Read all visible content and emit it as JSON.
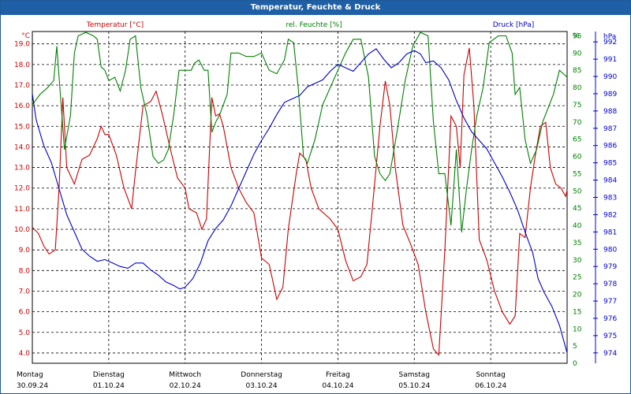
{
  "window": {
    "title": "Temperatur, Feuchte & Druck"
  },
  "chart_data": {
    "type": "line",
    "title": "Temperatur, Feuchte & Druck",
    "grid": true,
    "x_range": [
      0,
      7
    ],
    "days": [
      {
        "weekday": "Montag",
        "date": "30.09.24"
      },
      {
        "weekday": "Dienstag",
        "date": "01.10.24"
      },
      {
        "weekday": "Mittwoch",
        "date": "02.10.24"
      },
      {
        "weekday": "Donnerstag",
        "date": "03.10.24"
      },
      {
        "weekday": "Freitag",
        "date": "04.10.24"
      },
      {
        "weekday": "Samstag",
        "date": "05.10.24"
      },
      {
        "weekday": "Sonntag",
        "date": "06.10.24"
      }
    ],
    "axes": {
      "temperature": {
        "label": "Temperatur [°C]",
        "unit": "°C",
        "color": "#cc0000",
        "min": 3.5,
        "max": 19.6,
        "ticks": [
          "4.0",
          "5.0",
          "6.0",
          "7.0",
          "8.0",
          "9.0",
          "10.0",
          "11.0",
          "12.0",
          "13.0",
          "14.0",
          "15.0",
          "16.0",
          "17.0",
          "18.0",
          "19.0"
        ]
      },
      "humidity": {
        "label": "rel. Feuchte [%]",
        "unit": "%",
        "color": "#008000",
        "min": 0,
        "max": 96.25,
        "ticks": [
          "0",
          "5",
          "10",
          "15",
          "20",
          "25",
          "30",
          "35",
          "40",
          "45",
          "50",
          "55",
          "60",
          "65",
          "70",
          "75",
          "80",
          "85",
          "90",
          "95"
        ]
      },
      "pressure": {
        "label": "Druck [hPa]",
        "unit": "hPa",
        "color": "#0000cc",
        "min": 973.4,
        "max": 992.6,
        "ticks": [
          "974",
          "975",
          "976",
          "977",
          "978",
          "979",
          "980",
          "981",
          "982",
          "983",
          "984",
          "985",
          "986",
          "987",
          "988",
          "989",
          "990",
          "991",
          "992"
        ]
      }
    },
    "series": [
      {
        "name": "Temperatur",
        "axis": "temperature",
        "color": "#cc0000",
        "points": [
          [
            0,
            10.1
          ],
          [
            0.08,
            9.8
          ],
          [
            0.15,
            9.2
          ],
          [
            0.22,
            8.8
          ],
          [
            0.3,
            9.0
          ],
          [
            0.35,
            12.0
          ],
          [
            0.4,
            16.4
          ],
          [
            0.45,
            13.0
          ],
          [
            0.55,
            12.2
          ],
          [
            0.65,
            13.4
          ],
          [
            0.75,
            13.6
          ],
          [
            0.85,
            14.4
          ],
          [
            0.9,
            15.0
          ],
          [
            0.95,
            14.6
          ],
          [
            1.0,
            14.6
          ],
          [
            1.1,
            13.6
          ],
          [
            1.2,
            12.0
          ],
          [
            1.3,
            11.0
          ],
          [
            1.35,
            12.8
          ],
          [
            1.45,
            16.0
          ],
          [
            1.55,
            16.2
          ],
          [
            1.62,
            16.7
          ],
          [
            1.7,
            15.6
          ],
          [
            1.8,
            14.0
          ],
          [
            1.9,
            12.5
          ],
          [
            2.0,
            12.0
          ],
          [
            2.05,
            11.0
          ],
          [
            2.15,
            10.8
          ],
          [
            2.22,
            10.0
          ],
          [
            2.28,
            10.5
          ],
          [
            2.35,
            16.4
          ],
          [
            2.4,
            15.5
          ],
          [
            2.45,
            15.6
          ],
          [
            2.5,
            15.0
          ],
          [
            2.6,
            13.0
          ],
          [
            2.7,
            12.0
          ],
          [
            2.8,
            11.3
          ],
          [
            2.9,
            10.8
          ],
          [
            3.0,
            8.6
          ],
          [
            3.1,
            8.3
          ],
          [
            3.2,
            6.6
          ],
          [
            3.28,
            7.2
          ],
          [
            3.35,
            10.0
          ],
          [
            3.45,
            12.6
          ],
          [
            3.5,
            13.7
          ],
          [
            3.58,
            13.4
          ],
          [
            3.65,
            12.0
          ],
          [
            3.75,
            11.0
          ],
          [
            3.9,
            10.5
          ],
          [
            4.0,
            10.0
          ],
          [
            4.1,
            8.5
          ],
          [
            4.2,
            7.5
          ],
          [
            4.3,
            7.7
          ],
          [
            4.38,
            8.3
          ],
          [
            4.45,
            11.0
          ],
          [
            4.55,
            15.0
          ],
          [
            4.62,
            17.2
          ],
          [
            4.68,
            16.0
          ],
          [
            4.75,
            13.0
          ],
          [
            4.85,
            10.2
          ],
          [
            4.95,
            9.3
          ],
          [
            5.05,
            8.3
          ],
          [
            5.15,
            6.0
          ],
          [
            5.25,
            4.2
          ],
          [
            5.32,
            3.9
          ],
          [
            5.4,
            9.0
          ],
          [
            5.48,
            15.5
          ],
          [
            5.55,
            15.0
          ],
          [
            5.6,
            13.0
          ],
          [
            5.65,
            17.5
          ],
          [
            5.72,
            18.8
          ],
          [
            5.78,
            16.0
          ],
          [
            5.85,
            9.5
          ],
          [
            5.95,
            8.5
          ],
          [
            6.05,
            7.0
          ],
          [
            6.15,
            6.0
          ],
          [
            6.25,
            5.4
          ],
          [
            6.32,
            5.8
          ],
          [
            6.38,
            9.8
          ],
          [
            6.45,
            9.6
          ],
          [
            6.52,
            12.0
          ],
          [
            6.58,
            13.5
          ],
          [
            6.65,
            15.0
          ],
          [
            6.72,
            15.2
          ],
          [
            6.78,
            13.0
          ],
          [
            6.85,
            12.2
          ],
          [
            6.92,
            12.0
          ],
          [
            6.98,
            11.6
          ],
          [
            7.0,
            11.9
          ]
        ]
      },
      {
        "name": "rel. Feuchte",
        "axis": "humidity",
        "color": "#008000",
        "points": [
          [
            0,
            75
          ],
          [
            0.1,
            78
          ],
          [
            0.2,
            80
          ],
          [
            0.28,
            82
          ],
          [
            0.32,
            92
          ],
          [
            0.36,
            80
          ],
          [
            0.42,
            62
          ],
          [
            0.5,
            72
          ],
          [
            0.55,
            90
          ],
          [
            0.6,
            95
          ],
          [
            0.7,
            96
          ],
          [
            0.8,
            95
          ],
          [
            0.85,
            94
          ],
          [
            0.9,
            86
          ],
          [
            0.95,
            85
          ],
          [
            1.0,
            82
          ],
          [
            1.08,
            83
          ],
          [
            1.15,
            79
          ],
          [
            1.22,
            85
          ],
          [
            1.28,
            94
          ],
          [
            1.35,
            95
          ],
          [
            1.42,
            80
          ],
          [
            1.5,
            72
          ],
          [
            1.58,
            60
          ],
          [
            1.65,
            58
          ],
          [
            1.72,
            59
          ],
          [
            1.78,
            62
          ],
          [
            1.85,
            72
          ],
          [
            1.92,
            85
          ],
          [
            2.0,
            85
          ],
          [
            2.08,
            85
          ],
          [
            2.12,
            87
          ],
          [
            2.18,
            88
          ],
          [
            2.25,
            85
          ],
          [
            2.3,
            85
          ],
          [
            2.35,
            67
          ],
          [
            2.4,
            70
          ],
          [
            2.45,
            72
          ],
          [
            2.55,
            78
          ],
          [
            2.6,
            90
          ],
          [
            2.7,
            90
          ],
          [
            2.8,
            89
          ],
          [
            2.9,
            89
          ],
          [
            3.0,
            90
          ],
          [
            3.1,
            85
          ],
          [
            3.2,
            84
          ],
          [
            3.3,
            88
          ],
          [
            3.35,
            94
          ],
          [
            3.42,
            93
          ],
          [
            3.48,
            80
          ],
          [
            3.55,
            60
          ],
          [
            3.6,
            58
          ],
          [
            3.7,
            65
          ],
          [
            3.8,
            75
          ],
          [
            3.9,
            80
          ],
          [
            4.0,
            85
          ],
          [
            4.1,
            90
          ],
          [
            4.2,
            94
          ],
          [
            4.3,
            94
          ],
          [
            4.4,
            83
          ],
          [
            4.48,
            60
          ],
          [
            4.55,
            55
          ],
          [
            4.62,
            53
          ],
          [
            4.68,
            55
          ],
          [
            4.78,
            68
          ],
          [
            4.88,
            82
          ],
          [
            4.98,
            92
          ],
          [
            5.08,
            96
          ],
          [
            5.18,
            95
          ],
          [
            5.25,
            70
          ],
          [
            5.32,
            55
          ],
          [
            5.4,
            55
          ],
          [
            5.48,
            40
          ],
          [
            5.55,
            62
          ],
          [
            5.62,
            38
          ],
          [
            5.68,
            50
          ],
          [
            5.75,
            62
          ],
          [
            5.82,
            72
          ],
          [
            5.9,
            80
          ],
          [
            5.98,
            93
          ],
          [
            6.1,
            95
          ],
          [
            6.2,
            95
          ],
          [
            6.28,
            90
          ],
          [
            6.32,
            78
          ],
          [
            6.38,
            80
          ],
          [
            6.45,
            65
          ],
          [
            6.52,
            58
          ],
          [
            6.6,
            62
          ],
          [
            6.68,
            70
          ],
          [
            6.75,
            74
          ],
          [
            6.82,
            78
          ],
          [
            6.9,
            85
          ],
          [
            6.95,
            84
          ],
          [
            7.0,
            83
          ]
        ]
      },
      {
        "name": "Druck",
        "axis": "pressure",
        "color": "#0000cc",
        "points": [
          [
            0,
            989.0
          ],
          [
            0.05,
            987.5
          ],
          [
            0.15,
            986.0
          ],
          [
            0.25,
            985.0
          ],
          [
            0.35,
            983.5
          ],
          [
            0.45,
            982.0
          ],
          [
            0.55,
            981.0
          ],
          [
            0.65,
            980.0
          ],
          [
            0.75,
            979.6
          ],
          [
            0.85,
            979.3
          ],
          [
            0.95,
            979.4
          ],
          [
            1.05,
            979.2
          ],
          [
            1.15,
            979.0
          ],
          [
            1.25,
            978.9
          ],
          [
            1.35,
            979.2
          ],
          [
            1.45,
            979.2
          ],
          [
            1.55,
            978.8
          ],
          [
            1.65,
            978.5
          ],
          [
            1.75,
            978.1
          ],
          [
            1.85,
            977.9
          ],
          [
            1.93,
            977.7
          ],
          [
            2.0,
            977.8
          ],
          [
            2.1,
            978.3
          ],
          [
            2.2,
            979.2
          ],
          [
            2.3,
            980.5
          ],
          [
            2.4,
            981.2
          ],
          [
            2.5,
            981.7
          ],
          [
            2.6,
            982.5
          ],
          [
            2.7,
            983.5
          ],
          [
            2.8,
            984.5
          ],
          [
            2.9,
            985.5
          ],
          [
            3.0,
            986.3
          ],
          [
            3.1,
            987.0
          ],
          [
            3.2,
            987.8
          ],
          [
            3.3,
            988.5
          ],
          [
            3.4,
            988.7
          ],
          [
            3.5,
            988.9
          ],
          [
            3.6,
            989.4
          ],
          [
            3.7,
            989.6
          ],
          [
            3.8,
            989.8
          ],
          [
            3.9,
            990.3
          ],
          [
            4.0,
            990.7
          ],
          [
            4.1,
            990.5
          ],
          [
            4.2,
            990.3
          ],
          [
            4.3,
            990.8
          ],
          [
            4.4,
            991.3
          ],
          [
            4.5,
            991.6
          ],
          [
            4.6,
            991.0
          ],
          [
            4.7,
            990.5
          ],
          [
            4.8,
            990.8
          ],
          [
            4.9,
            991.3
          ],
          [
            5.0,
            991.5
          ],
          [
            5.08,
            991.3
          ],
          [
            5.15,
            990.8
          ],
          [
            5.25,
            990.9
          ],
          [
            5.35,
            990.5
          ],
          [
            5.45,
            989.8
          ],
          [
            5.55,
            988.6
          ],
          [
            5.65,
            987.6
          ],
          [
            5.75,
            986.8
          ],
          [
            5.85,
            986.3
          ],
          [
            5.95,
            985.8
          ],
          [
            6.05,
            985.0
          ],
          [
            6.15,
            984.2
          ],
          [
            6.25,
            983.3
          ],
          [
            6.35,
            982.3
          ],
          [
            6.45,
            981.0
          ],
          [
            6.55,
            979.8
          ],
          [
            6.62,
            978.3
          ],
          [
            6.7,
            977.5
          ],
          [
            6.8,
            976.7
          ],
          [
            6.9,
            975.6
          ],
          [
            7.0,
            974.0
          ]
        ]
      }
    ]
  }
}
